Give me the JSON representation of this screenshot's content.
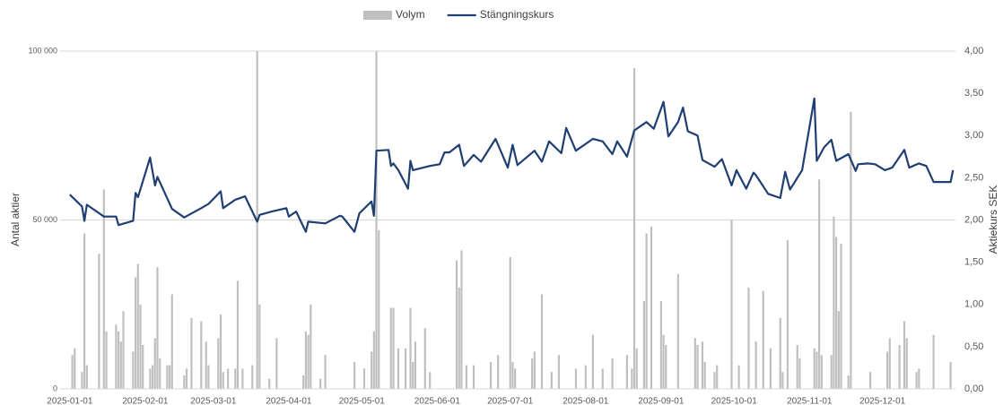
{
  "chart_data": {
    "type": "bar_line",
    "y_label": "Antal aktier",
    "y2_label": "Aktiekurs SEK",
    "xlim": [
      "2024-12-28",
      "2025-12-31"
    ],
    "xticks": [
      "2025-01-01",
      "2025-02-01",
      "2025-03-01",
      "2025-04-01",
      "2025-05-01",
      "2025-06-01",
      "2025-07-01",
      "2025-08-01",
      "2025-09-01",
      "2025-10-01",
      "2025-11-01",
      "2025-12-01"
    ],
    "ylim": [
      0,
      100000
    ],
    "yticks": [
      0,
      {
        "value": 50000,
        "label": "50 000"
      },
      {
        "value": 100000,
        "label": "100 000"
      }
    ],
    "y2lim": [
      0,
      4
    ],
    "y2ticks": [
      {
        "value": 0,
        "label": "0,00"
      },
      {
        "value": 0.5,
        "label": "0,50"
      },
      {
        "value": 1,
        "label": "1,00"
      },
      {
        "value": 1.5,
        "label": "1,50"
      },
      {
        "value": 2,
        "label": "2,00"
      },
      {
        "value": 2.5,
        "label": "2,50"
      },
      {
        "value": 3,
        "label": "3,00"
      },
      {
        "value": 3.5,
        "label": "3,50"
      },
      {
        "value": 4,
        "label": "4,00"
      }
    ],
    "grid": true,
    "legend": "top",
    "series": [
      {
        "name": "Volym",
        "color": "#bfbfbf",
        "kind": "bar",
        "x": [
          "2025-01-02",
          "2025-01-03",
          "2025-01-06",
          "2025-01-07",
          "2025-01-08",
          "2025-01-13",
          "2025-01-15",
          "2025-01-16",
          "2025-01-20",
          "2025-01-21",
          "2025-01-22",
          "2025-01-23",
          "2025-01-27",
          "2025-01-28",
          "2025-01-29",
          "2025-01-30",
          "2025-01-31",
          "2025-02-03",
          "2025-02-04",
          "2025-02-05",
          "2025-02-06",
          "2025-02-07",
          "2025-02-10",
          "2025-02-11",
          "2025-02-12",
          "2025-02-17",
          "2025-02-18",
          "2025-02-20",
          "2025-02-24",
          "2025-02-26",
          "2025-02-27",
          "2025-03-03",
          "2025-03-04",
          "2025-03-05",
          "2025-03-07",
          "2025-03-10",
          "2025-03-11",
          "2025-03-13",
          "2025-03-17",
          "2025-03-19",
          "2025-03-20",
          "2025-03-24",
          "2025-03-27",
          "2025-04-07",
          "2025-04-08",
          "2025-04-09",
          "2025-04-10",
          "2025-04-14",
          "2025-04-16",
          "2025-04-28",
          "2025-05-02",
          "2025-05-05",
          "2025-05-06",
          "2025-05-07",
          "2025-05-08",
          "2025-05-13",
          "2025-05-14",
          "2025-05-16",
          "2025-05-19",
          "2025-05-21",
          "2025-05-22",
          "2025-05-23",
          "2025-05-27",
          "2025-05-29",
          "2025-06-09",
          "2025-06-10",
          "2025-06-11",
          "2025-06-13",
          "2025-06-16",
          "2025-06-23",
          "2025-06-26",
          "2025-07-01",
          "2025-07-02",
          "2025-07-03",
          "2025-07-10",
          "2025-07-11",
          "2025-07-14",
          "2025-07-18",
          "2025-07-21",
          "2025-07-28",
          "2025-08-01",
          "2025-08-04",
          "2025-08-08",
          "2025-08-12",
          "2025-08-18",
          "2025-08-20",
          "2025-08-21",
          "2025-08-22",
          "2025-08-25",
          "2025-08-26",
          "2025-08-28",
          "2025-09-01",
          "2025-09-02",
          "2025-09-03",
          "2025-09-08",
          "2025-09-15",
          "2025-09-16",
          "2025-09-18",
          "2025-09-19",
          "2025-09-23",
          "2025-09-24",
          "2025-09-30",
          "2025-10-03",
          "2025-10-07",
          "2025-10-10",
          "2025-10-13",
          "2025-10-16",
          "2025-10-20",
          "2025-10-21",
          "2025-10-23",
          "2025-10-27",
          "2025-10-28",
          "2025-11-03",
          "2025-11-04",
          "2025-11-05",
          "2025-11-06",
          "2025-11-10",
          "2025-11-11",
          "2025-11-12",
          "2025-11-13",
          "2025-11-14",
          "2025-11-17",
          "2025-11-18",
          "2025-11-26",
          "2025-12-03",
          "2025-12-04",
          "2025-12-08",
          "2025-12-10",
          "2025-12-11",
          "2025-12-15",
          "2025-12-16",
          "2025-12-22",
          "2025-12-29"
        ],
        "values": [
          10000,
          12000,
          5000,
          46000,
          7000,
          40000,
          59000,
          17000,
          19000,
          17000,
          14000,
          23000,
          11000,
          33000,
          37000,
          25000,
          13000,
          6000,
          7000,
          15000,
          36000,
          9000,
          7000,
          7000,
          28000,
          4000,
          6000,
          21000,
          20000,
          14000,
          7000,
          15000,
          22000,
          5000,
          6000,
          6000,
          32000,
          6000,
          7000,
          100000,
          25000,
          3000,
          15000,
          4000,
          17000,
          16000,
          25000,
          3000,
          10000,
          8000,
          6000,
          11000,
          17000,
          100000,
          47000,
          24000,
          24000,
          12000,
          12000,
          24000,
          8000,
          14000,
          18000,
          5000,
          38000,
          30000,
          41000,
          7000,
          7000,
          8000,
          10000,
          39000,
          8000,
          6000,
          9000,
          11000,
          28000,
          5000,
          10000,
          6000,
          7000,
          16000,
          6000,
          9000,
          10000,
          6000,
          95000,
          12000,
          26000,
          46000,
          48000,
          26000,
          16000,
          13000,
          34000,
          15000,
          13000,
          14000,
          8000,
          5000,
          7000,
          50000,
          7000,
          30000,
          14000,
          29000,
          12000,
          21000,
          5000,
          44000,
          13000,
          9000,
          12000,
          11000,
          62000,
          10000,
          10000,
          51000,
          45000,
          23000,
          43000,
          4000,
          82000,
          5000,
          11000,
          15000,
          13000,
          20000,
          15000,
          5000,
          6000,
          16000,
          8000
        ]
      },
      {
        "name": "Stängningskurs",
        "color": "#1f3f73",
        "kind": "line",
        "axis": "y2",
        "x": [
          "2025-01-01",
          "2025-01-06",
          "2025-01-07",
          "2025-01-08",
          "2025-01-15",
          "2025-01-20",
          "2025-01-21",
          "2025-01-27",
          "2025-01-28",
          "2025-01-29",
          "2025-02-03",
          "2025-02-05",
          "2025-02-06",
          "2025-02-12",
          "2025-02-17",
          "2025-02-24",
          "2025-02-27",
          "2025-03-04",
          "2025-03-05",
          "2025-03-10",
          "2025-03-14",
          "2025-03-19",
          "2025-03-20",
          "2025-03-25",
          "2025-03-31",
          "2025-04-01",
          "2025-04-04",
          "2025-04-08",
          "2025-04-09",
          "2025-04-16",
          "2025-04-22",
          "2025-04-23",
          "2025-04-28",
          "2025-04-30",
          "2025-05-05",
          "2025-05-06",
          "2025-05-07",
          "2025-05-12",
          "2025-05-13",
          "2025-05-14",
          "2025-05-16",
          "2025-05-20",
          "2025-05-21",
          "2025-05-22",
          "2025-05-29",
          "2025-06-02",
          "2025-06-04",
          "2025-06-06",
          "2025-06-10",
          "2025-06-12",
          "2025-06-16",
          "2025-06-19",
          "2025-06-25",
          "2025-06-30",
          "2025-07-02",
          "2025-07-04",
          "2025-07-11",
          "2025-07-14",
          "2025-07-17",
          "2025-07-22",
          "2025-07-24",
          "2025-07-28",
          "2025-08-04",
          "2025-08-08",
          "2025-08-12",
          "2025-08-14",
          "2025-08-18",
          "2025-08-21",
          "2025-08-26",
          "2025-08-29",
          "2025-09-02",
          "2025-09-04",
          "2025-09-08",
          "2025-09-10",
          "2025-09-12",
          "2025-09-16",
          "2025-09-18",
          "2025-09-23",
          "2025-09-26",
          "2025-09-30",
          "2025-10-02",
          "2025-10-06",
          "2025-10-09",
          "2025-10-10",
          "2025-10-15",
          "2025-10-20",
          "2025-10-22",
          "2025-10-24",
          "2025-10-29",
          "2025-11-03",
          "2025-11-04",
          "2025-11-07",
          "2025-11-10",
          "2025-11-12",
          "2025-11-17",
          "2025-11-20",
          "2025-11-21",
          "2025-11-25",
          "2025-11-28",
          "2025-12-02",
          "2025-12-05",
          "2025-12-10",
          "2025-12-12",
          "2025-12-16",
          "2025-12-19",
          "2025-12-22",
          "2025-12-29",
          "2025-12-30"
        ],
        "values": [
          2.3,
          2.16,
          1.99,
          2.18,
          2.04,
          2.04,
          1.94,
          1.99,
          2.32,
          2.27,
          2.74,
          2.41,
          2.51,
          2.13,
          2.03,
          2.14,
          2.19,
          2.34,
          2.14,
          2.24,
          2.28,
          1.98,
          2.06,
          2.1,
          2.14,
          2.04,
          2.1,
          1.86,
          1.98,
          1.96,
          2.05,
          2.04,
          1.86,
          2.08,
          2.22,
          2.05,
          2.82,
          2.83,
          2.64,
          2.67,
          2.59,
          2.37,
          2.7,
          2.59,
          2.64,
          2.66,
          2.8,
          2.8,
          2.89,
          2.64,
          2.77,
          2.69,
          2.96,
          2.62,
          2.89,
          2.65,
          2.82,
          2.69,
          2.93,
          2.79,
          3.09,
          2.82,
          2.96,
          2.93,
          2.78,
          2.93,
          2.75,
          3.06,
          3.16,
          3.08,
          3.4,
          2.99,
          3.16,
          3.33,
          3.05,
          3.0,
          2.71,
          2.63,
          2.72,
          2.41,
          2.59,
          2.37,
          2.56,
          2.53,
          2.31,
          2.26,
          2.57,
          2.36,
          2.59,
          3.44,
          2.7,
          2.86,
          2.95,
          2.7,
          2.78,
          2.58,
          2.66,
          2.67,
          2.66,
          2.59,
          2.62,
          2.83,
          2.62,
          2.67,
          2.64,
          2.45,
          2.45,
          2.59
        ]
      }
    ]
  }
}
